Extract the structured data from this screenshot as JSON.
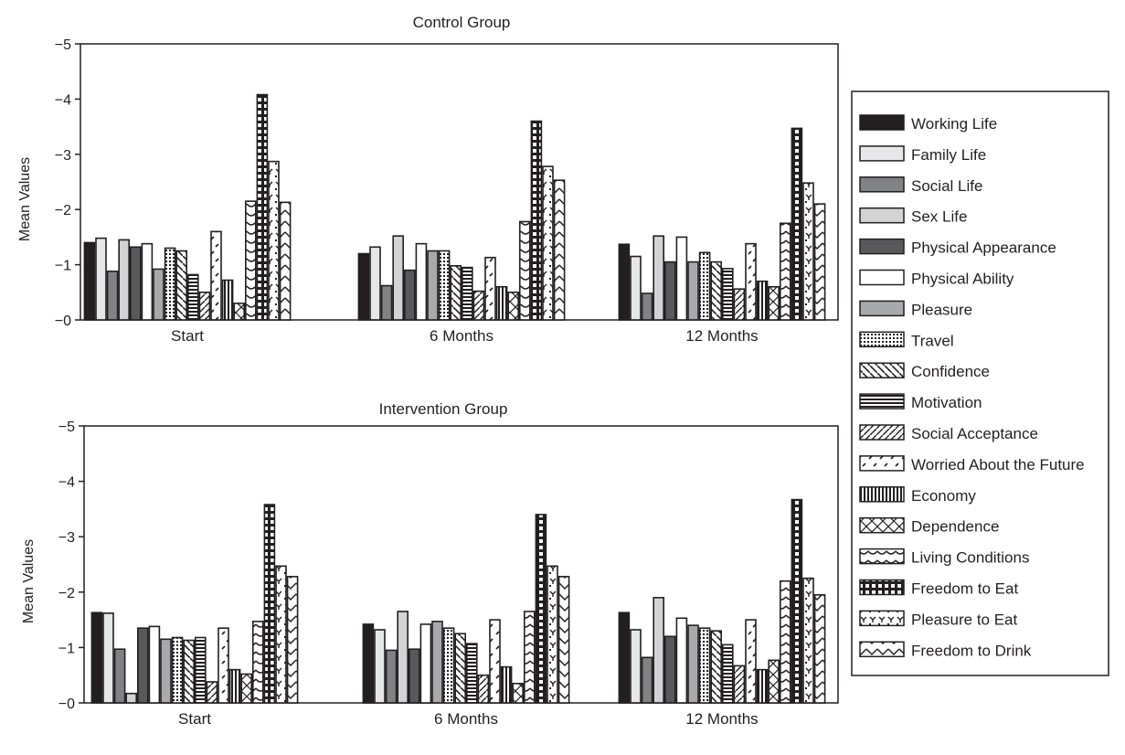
{
  "chart_data": [
    {
      "type": "bar",
      "title": "Control Group",
      "ylabel": "Mean Values",
      "xlabel": "",
      "ylim": [
        0,
        -5
      ],
      "yticks": [
        "−5",
        "−4",
        "−3",
        "−2",
        "−1",
        "−0"
      ],
      "categories": [
        "Start",
        "6 Months",
        "12 Months"
      ],
      "series": [
        {
          "name": "Working Life",
          "values": [
            -1.4,
            -1.2,
            -1.37
          ]
        },
        {
          "name": "Family Life",
          "values": [
            -1.48,
            -1.32,
            -1.15
          ]
        },
        {
          "name": "Social Life",
          "values": [
            -0.88,
            -0.62,
            -0.48
          ]
        },
        {
          "name": "Sex Life",
          "values": [
            -1.45,
            -1.52,
            -1.52
          ]
        },
        {
          "name": "Physical Appearance",
          "values": [
            -1.32,
            -0.9,
            -1.05
          ]
        },
        {
          "name": "Physical Ability",
          "values": [
            -1.38,
            -1.38,
            -1.5
          ]
        },
        {
          "name": "Pleasure",
          "values": [
            -0.92,
            -1.25,
            -1.05
          ]
        },
        {
          "name": "Travel",
          "values": [
            -1.3,
            -1.25,
            -1.22
          ]
        },
        {
          "name": "Confidence",
          "values": [
            -1.25,
            -0.98,
            -1.05
          ]
        },
        {
          "name": "Motivation",
          "values": [
            -0.82,
            -0.95,
            -0.93
          ]
        },
        {
          "name": "Social Acceptance",
          "values": [
            -0.5,
            -0.52,
            -0.56
          ]
        },
        {
          "name": "Worried About the Future",
          "values": [
            -1.6,
            -1.13,
            -1.38
          ]
        },
        {
          "name": "Economy",
          "values": [
            -0.72,
            -0.6,
            -0.7
          ]
        },
        {
          "name": "Dependence",
          "values": [
            -0.3,
            -0.5,
            -0.6
          ]
        },
        {
          "name": "Living Conditions",
          "values": [
            -2.15,
            -1.78,
            -1.75
          ]
        },
        {
          "name": "Freedom to Eat",
          "values": [
            -4.08,
            -3.6,
            -3.47
          ]
        },
        {
          "name": "Pleasure to Eat",
          "values": [
            -2.87,
            -2.78,
            -2.48
          ]
        },
        {
          "name": "Freedom to Drink",
          "values": [
            -2.13,
            -2.53,
            -2.1
          ]
        }
      ]
    },
    {
      "type": "bar",
      "title": "Intervention Group",
      "ylabel": "Mean Values",
      "xlabel": "",
      "ylim": [
        0,
        -5
      ],
      "yticks": [
        "−5",
        "−4",
        "−3",
        "−2",
        "−1",
        "−0"
      ],
      "categories": [
        "Start",
        "6 Months",
        "12 Months"
      ],
      "series": [
        {
          "name": "Working Life",
          "values": [
            -1.63,
            -1.42,
            -1.63
          ]
        },
        {
          "name": "Family Life",
          "values": [
            -1.62,
            -1.32,
            -1.32
          ]
        },
        {
          "name": "Social Life",
          "values": [
            -0.97,
            -0.95,
            -0.82
          ]
        },
        {
          "name": "Sex Life",
          "values": [
            -0.17,
            -1.65,
            -1.9
          ]
        },
        {
          "name": "Physical Appearance",
          "values": [
            -1.35,
            -0.97,
            -1.2
          ]
        },
        {
          "name": "Physical Ability",
          "values": [
            -1.38,
            -1.42,
            -1.53
          ]
        },
        {
          "name": "Pleasure",
          "values": [
            -1.15,
            -1.47,
            -1.4
          ]
        },
        {
          "name": "Travel",
          "values": [
            -1.18,
            -1.35,
            -1.35
          ]
        },
        {
          "name": "Confidence",
          "values": [
            -1.13,
            -1.25,
            -1.3
          ]
        },
        {
          "name": "Motivation",
          "values": [
            -1.18,
            -1.07,
            -1.05
          ]
        },
        {
          "name": "Social Acceptance",
          "values": [
            -0.38,
            -0.5,
            -0.67
          ]
        },
        {
          "name": "Worried About the Future",
          "values": [
            -1.35,
            -1.5,
            -1.5
          ]
        },
        {
          "name": "Economy",
          "values": [
            -0.6,
            -0.65,
            -0.6
          ]
        },
        {
          "name": "Dependence",
          "values": [
            -0.52,
            -0.35,
            -0.77
          ]
        },
        {
          "name": "Living Conditions",
          "values": [
            -1.47,
            -1.65,
            -2.2
          ]
        },
        {
          "name": "Freedom to Eat",
          "values": [
            -3.58,
            -3.4,
            -3.67
          ]
        },
        {
          "name": "Pleasure to Eat",
          "values": [
            -2.47,
            -2.47,
            -2.25
          ]
        },
        {
          "name": "Freedom to Drink",
          "values": [
            -2.28,
            -2.28,
            -1.95
          ]
        }
      ]
    }
  ],
  "legend": {
    "placement": "right",
    "items": [
      {
        "label": "Working Life",
        "fill": "#231f20"
      },
      {
        "label": "Family Life",
        "fill": "#e6e7e8"
      },
      {
        "label": "Social Life",
        "fill": "#808285"
      },
      {
        "label": "Sex Life",
        "fill": "#d1d3d4"
      },
      {
        "label": "Physical Appearance",
        "fill": "#58595b"
      },
      {
        "label": "Physical Ability",
        "fill": "#ffffff"
      },
      {
        "label": "Pleasure",
        "fill": "#a7a9ac"
      },
      {
        "label": "Travel",
        "fill": "pattern-dots"
      },
      {
        "label": "Confidence",
        "fill": "pattern-backslash"
      },
      {
        "label": "Motivation",
        "fill": "pattern-hlines"
      },
      {
        "label": "Social Acceptance",
        "fill": "pattern-slash"
      },
      {
        "label": "Worried About the Future",
        "fill": "pattern-dashes"
      },
      {
        "label": "Economy",
        "fill": "pattern-vlines"
      },
      {
        "label": "Dependence",
        "fill": "pattern-cross"
      },
      {
        "label": "Living Conditions",
        "fill": "pattern-wave"
      },
      {
        "label": "Freedom to Eat",
        "fill": "pattern-grid"
      },
      {
        "label": "Pleasure to Eat",
        "fill": "pattern-dotdash"
      },
      {
        "label": "Freedom to Drink",
        "fill": "pattern-zigzag"
      }
    ]
  }
}
